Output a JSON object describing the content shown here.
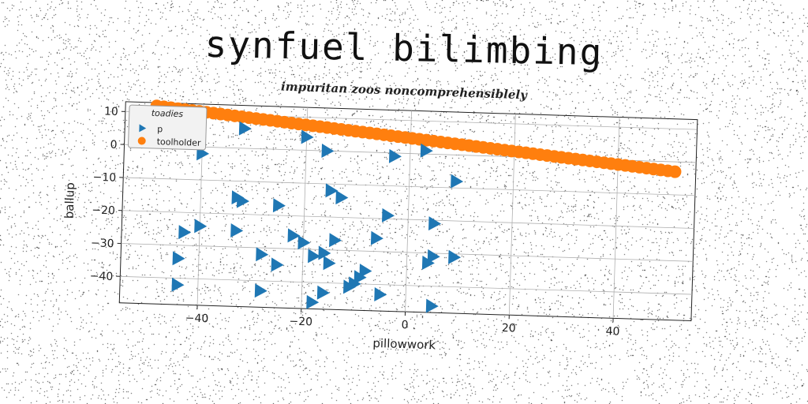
{
  "header": {
    "title": "synfuel bilimbing",
    "subtitle": "impuritan zoos noncomprehensiblely"
  },
  "chart_data": {
    "type": "scatter",
    "xlabel": "pillowwork",
    "ylabel": "ballup",
    "xlim": [
      -55,
      55
    ],
    "ylim": [
      -48,
      13
    ],
    "xticks": [
      -40,
      -20,
      0,
      20,
      40
    ],
    "yticks": [
      10,
      0,
      -10,
      -20,
      -30,
      -40
    ],
    "grid": true,
    "legend": {
      "title": "toadies",
      "placement": "top-left",
      "entries": [
        "p",
        "toolholder"
      ]
    },
    "series": [
      {
        "name": "p",
        "marker": "triangle-right",
        "color": "#1f77b4",
        "points": [
          [
            -32,
            6
          ],
          [
            -20,
            4
          ],
          [
            -16,
            0
          ],
          [
            -3,
            -1
          ],
          [
            3,
            1
          ],
          [
            -40,
            -2
          ],
          [
            9,
            -8
          ],
          [
            -15,
            -12
          ],
          [
            -13,
            -14
          ],
          [
            -33,
            -15
          ],
          [
            -32,
            -16
          ],
          [
            -25,
            -17
          ],
          [
            -4,
            -19
          ],
          [
            5,
            -21
          ],
          [
            -40,
            -24
          ],
          [
            -43,
            -26
          ],
          [
            -33,
            -25
          ],
          [
            -22,
            -26
          ],
          [
            -20,
            -28
          ],
          [
            -14,
            -27
          ],
          [
            -6,
            -26
          ],
          [
            -28,
            -32
          ],
          [
            -18,
            -32
          ],
          [
            -16,
            -31
          ],
          [
            -15,
            -34
          ],
          [
            5,
            -31
          ],
          [
            9,
            -31
          ],
          [
            4,
            -33
          ],
          [
            -44,
            -34
          ],
          [
            -25,
            -35
          ],
          [
            -8,
            -36
          ],
          [
            -9,
            -38
          ],
          [
            -10,
            -40
          ],
          [
            -11,
            -41
          ],
          [
            -16,
            -43
          ],
          [
            -5,
            -43
          ],
          [
            -44,
            -42
          ],
          [
            -28,
            -43
          ],
          [
            -18,
            -46
          ],
          [
            5,
            -46
          ]
        ]
      },
      {
        "name": "toolholder",
        "marker": "circle",
        "color": "#ff7f0e",
        "x_range": [
          -49,
          51
        ],
        "count": 74,
        "y_start": 12,
        "y_end": -3
      }
    ]
  },
  "colors": {
    "blue": "#1f77b4",
    "orange": "#ff7f0e",
    "grid": "#b0b0b0"
  }
}
